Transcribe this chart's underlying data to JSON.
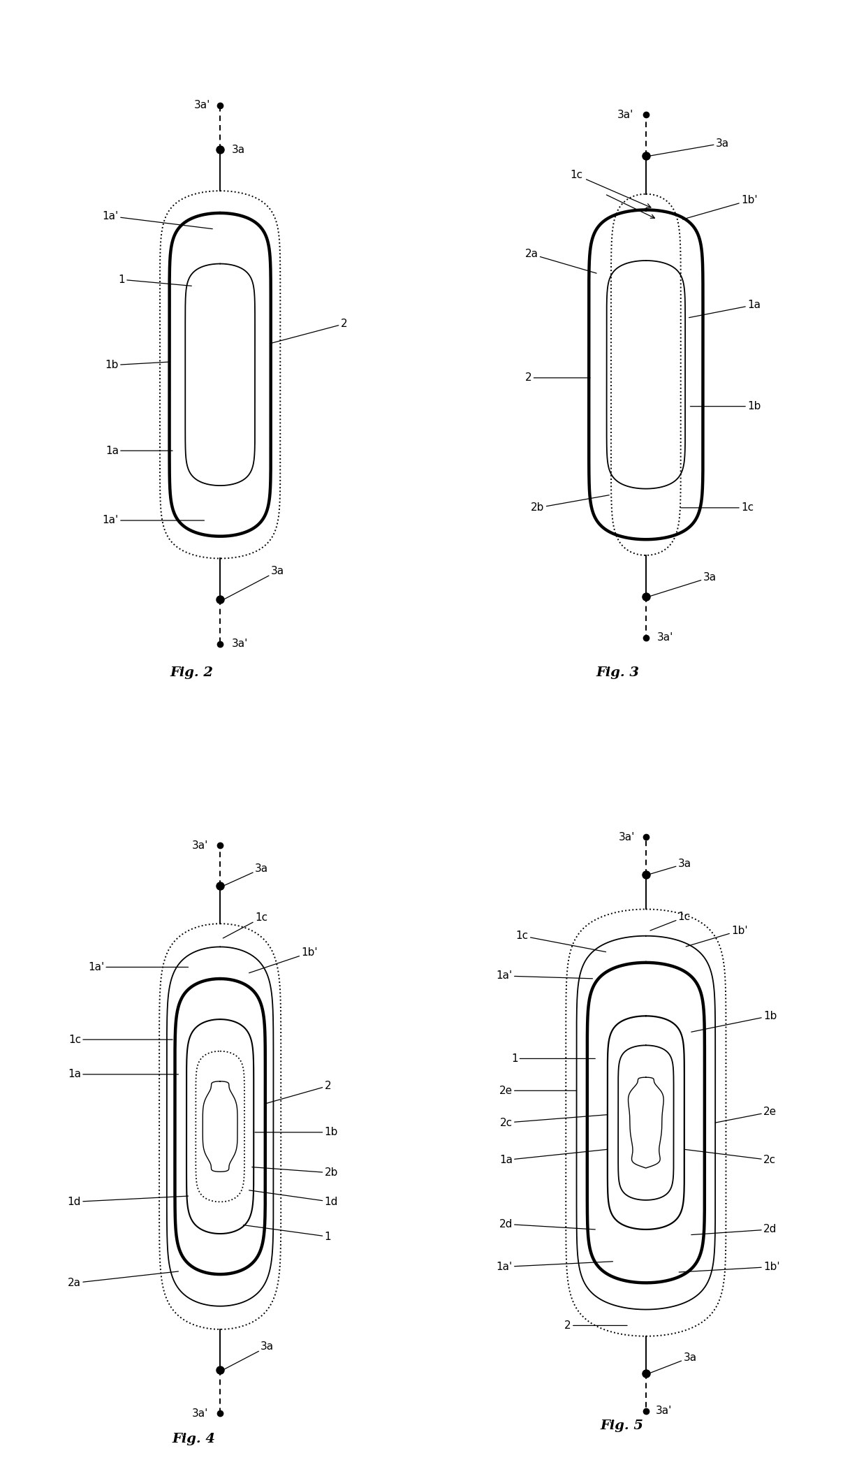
{
  "background_color": "#ffffff",
  "line_color": "#000000",
  "text_color": "#000000",
  "fig2": {
    "title": "Fig. 2"
  },
  "fig3": {
    "title": "Fig. 3"
  },
  "fig4": {
    "title": "Fig. 4"
  },
  "fig5": {
    "title": "Fig. 5"
  }
}
